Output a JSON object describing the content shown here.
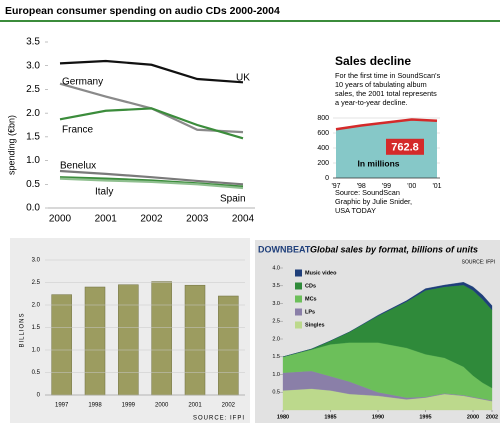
{
  "chart_data": [
    {
      "type": "line",
      "title": "European consumer spending on audio CDs 2000-2004",
      "y_label": "spending (€bn)",
      "categories": [
        "2000",
        "2001",
        "2002",
        "2003",
        "2004"
      ],
      "series": [
        {
          "name": "UK",
          "color": "#111111",
          "values": [
            3.05,
            3.1,
            3.02,
            2.72,
            2.65
          ]
        },
        {
          "name": "Germany",
          "color": "#8a8a8a",
          "values": [
            2.62,
            2.35,
            2.1,
            1.65,
            1.6
          ]
        },
        {
          "name": "France",
          "color": "#3b8c3b",
          "values": [
            1.87,
            2.05,
            2.1,
            1.75,
            1.47
          ]
        },
        {
          "name": "Benelux",
          "color": "#7a7a7a",
          "values": [
            0.78,
            0.72,
            0.65,
            0.57,
            0.5
          ]
        },
        {
          "name": "Italy",
          "color": "#3b8c3b",
          "values": [
            0.65,
            0.62,
            0.58,
            0.52,
            0.45
          ]
        },
        {
          "name": "Spain",
          "color": "#8fbf8f",
          "values": [
            0.62,
            0.58,
            0.55,
            0.5,
            0.42
          ]
        }
      ],
      "ylim": [
        0,
        3.5
      ],
      "yticks": [
        {
          "value": 0,
          "label": "0.0"
        },
        0.5,
        {
          "value": 1,
          "label": "1.0"
        },
        1.5,
        {
          "value": 2,
          "label": "2.0"
        },
        2.5,
        {
          "value": 3,
          "label": "3.0"
        },
        3.5
      ],
      "grid": false
    },
    {
      "type": "area",
      "title": "Sales decline",
      "note": [
        "For the first time in SoundScan's",
        "10 years of tabulating album",
        "sales, the 2001 total represents",
        "a year-to-year decline."
      ],
      "unit_label": "In millions",
      "source": [
        "Source: SoundScan",
        "Graphic by Julie Snider,",
        "USA TODAY"
      ],
      "categories": [
        "'97",
        "'98",
        "'99",
        "'00",
        "'01"
      ],
      "values": [
        650,
        700,
        740,
        780,
        762.8
      ],
      "color": "#d42a2a",
      "fill": "#86c8c8",
      "ylim": [
        0,
        800
      ],
      "yticks": [
        0,
        200,
        400,
        600,
        800
      ],
      "grid": true
    },
    {
      "type": "bar",
      "y_label": "BILLIONS",
      "source": "SOURCE: IFPI",
      "categories": [
        "1997",
        "1998",
        "1999",
        "2000",
        "2001",
        "2002"
      ],
      "values": [
        2.23,
        2.4,
        2.45,
        2.52,
        2.44,
        2.2
      ],
      "color": "#9c9c60",
      "ylim": [
        0,
        3
      ],
      "yticks": [
        0,
        0.5,
        {
          "value": 1,
          "label": "1.0"
        },
        1.5,
        {
          "value": 2,
          "label": "2.0"
        },
        2.5,
        {
          "value": 3,
          "label": "3.0"
        }
      ],
      "grid": true
    },
    {
      "type": "stacked-area",
      "brand": "DOWNBEAT",
      "title": "Global sales by format, billions of units",
      "source": "SOURCE: IFPI",
      "x": [
        1980,
        1983,
        1985,
        1987,
        1990,
        1993,
        1995,
        1997,
        1999,
        2000,
        2001,
        2002
      ],
      "series": [
        {
          "name": "Music video",
          "color": "#1f3f7a",
          "values": [
            0,
            0,
            0,
            0,
            0.02,
            0.03,
            0.05,
            0.05,
            0.08,
            0.1,
            0.12,
            0.12
          ]
        },
        {
          "name": "CDs",
          "color": "#2f8a3a",
          "values": [
            0,
            0.02,
            0.1,
            0.3,
            0.75,
            1.3,
            1.8,
            2.0,
            2.3,
            2.4,
            2.35,
            2.2
          ]
        },
        {
          "name": "MCs",
          "color": "#6cbf5a",
          "values": [
            0.45,
            0.6,
            0.9,
            1.1,
            1.4,
            1.4,
            1.2,
            1.0,
            0.8,
            0.6,
            0.45,
            0.35
          ]
        },
        {
          "name": "LPs",
          "color": "#8a7fa8",
          "values": [
            0.5,
            0.5,
            0.4,
            0.35,
            0.1,
            0.05,
            0.02,
            0.02,
            0.02,
            0.02,
            0.02,
            0.02
          ]
        },
        {
          "name": "Singles",
          "color": "#bcd98c",
          "values": [
            0.55,
            0.6,
            0.55,
            0.45,
            0.4,
            0.3,
            0.35,
            0.45,
            0.4,
            0.35,
            0.3,
            0.25
          ]
        }
      ],
      "xlim": [
        1980,
        2002
      ],
      "xticks": [
        1980,
        1985,
        1990,
        1995,
        2000,
        2002
      ],
      "ylim": [
        0,
        4
      ],
      "yticks": [
        0.5,
        {
          "value": 1,
          "label": "1.0"
        },
        1.5,
        {
          "value": 2,
          "label": "2.0"
        },
        2.5,
        {
          "value": 3,
          "label": "3.0"
        },
        3.5,
        {
          "value": 4,
          "label": "4.0"
        }
      ],
      "grid": false
    }
  ]
}
